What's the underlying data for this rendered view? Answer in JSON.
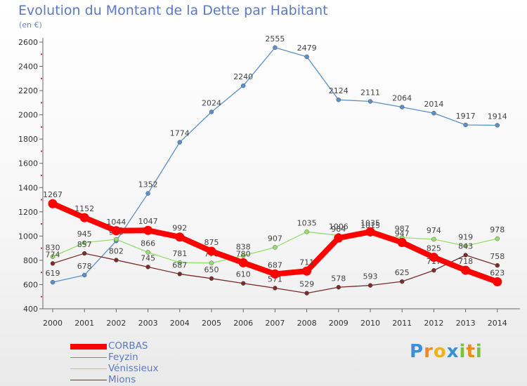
{
  "header": {
    "title": "Evolution du Montant de la Dette par Habitant",
    "subtitle": "(en €)"
  },
  "chart_data": {
    "type": "line",
    "x": [
      "2000",
      "2001",
      "2002",
      "2003",
      "2004",
      "2005",
      "2006",
      "2007",
      "2008",
      "2009",
      "2010",
      "2011",
      "2012",
      "2013",
      "2014"
    ],
    "ylim": [
      400,
      2600
    ],
    "yticks": [
      "400",
      "600",
      "800",
      "1000",
      "1200",
      "1400",
      "1600",
      "1800",
      "2000",
      "2200",
      "2400",
      "2600"
    ],
    "grid": false,
    "legend_position": "bottom-left",
    "series": [
      {
        "name": "Feyzin",
        "color": "#5b8fc9",
        "values": [
          619,
          678,
          960,
          1352,
          1774,
          2024,
          2240,
          2555,
          2479,
          2124,
          2111,
          2064,
          2014,
          1917,
          1914
        ]
      },
      {
        "name": "Vénissieux",
        "color": "#94e06b",
        "values": [
          830,
          945,
          973,
          866,
          781,
          778,
          838,
          907,
          1035,
          1006,
          1015,
          987,
          974,
          919,
          978
        ]
      },
      {
        "name": "Mions",
        "color": "#7a2b2b",
        "values": [
          774,
          857,
          802,
          745,
          687,
          650,
          610,
          571,
          529,
          578,
          593,
          625,
          717,
          843,
          758
        ]
      },
      {
        "name": "CORBAS",
        "color": "#ff0000",
        "values": [
          1267,
          1152,
          1044,
          1047,
          992,
          875,
          780,
          687,
          711,
          984,
          1035,
          947,
          825,
          718,
          623
        ]
      }
    ],
    "legend": [
      "CORBAS",
      "Feyzin",
      "Vénissieux",
      "Mions"
    ]
  },
  "logo": {
    "letters": [
      {
        "ch": "P",
        "color": "#3b8fd6"
      },
      {
        "ch": "r",
        "color": "#f08a1c"
      },
      {
        "ch": "o",
        "color": "#f0b21c"
      },
      {
        "ch": "x",
        "color": "#3b8fd6"
      },
      {
        "ch": "i",
        "color": "#7ac142"
      },
      {
        "ch": "t",
        "color": "#f08a1c"
      },
      {
        "ch": "i",
        "color": "#7ac142"
      }
    ]
  }
}
